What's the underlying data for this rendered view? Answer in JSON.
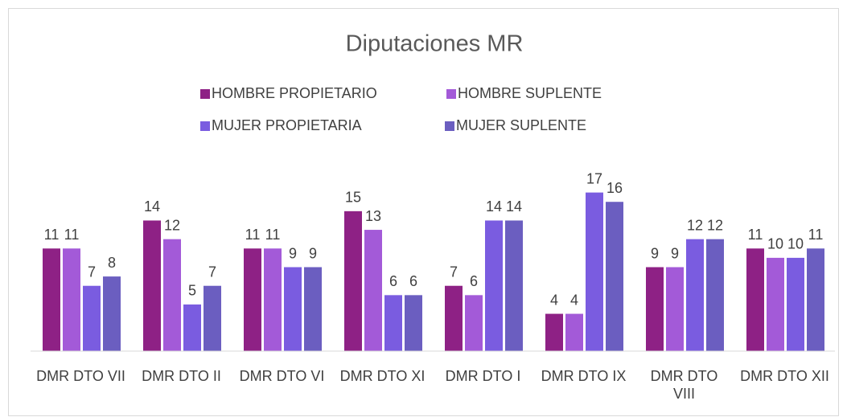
{
  "chart_data": {
    "type": "bar",
    "title": "Diputaciones MR",
    "categories": [
      "DMR DTO VII",
      "DMR DTO II",
      "DMR DTO VI",
      "DMR DTO XI",
      "DMR DTO I",
      "DMR DTO IX",
      "DMR DTO VIII",
      "DMR DTO XII"
    ],
    "series": [
      {
        "name": "HOMBRE PROPIETARIO",
        "color": "#8e2185",
        "values": [
          11,
          14,
          11,
          15,
          7,
          4,
          9,
          11
        ]
      },
      {
        "name": "HOMBRE SUPLENTE",
        "color": "#a35ad8",
        "values": [
          11,
          12,
          11,
          13,
          6,
          4,
          9,
          10
        ]
      },
      {
        "name": "MUJER PROPIETARIA",
        "color": "#7a5ce0",
        "values": [
          7,
          5,
          9,
          6,
          14,
          17,
          12,
          10
        ]
      },
      {
        "name": "MUJER SUPLENTE",
        "color": "#6b5ec0",
        "values": [
          8,
          7,
          9,
          6,
          14,
          16,
          12,
          11
        ]
      }
    ],
    "ylim": [
      0,
      18
    ],
    "legend": "top"
  }
}
